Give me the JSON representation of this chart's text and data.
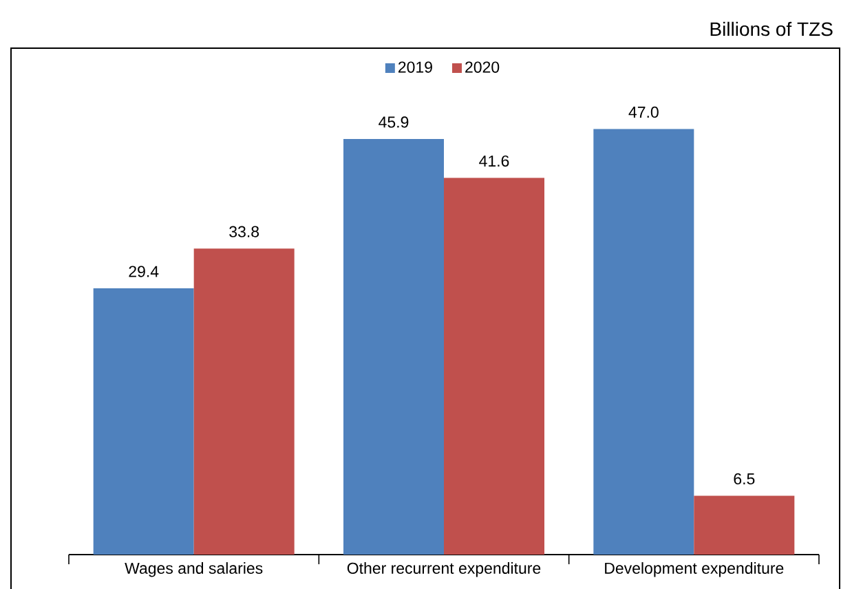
{
  "chart_data": {
    "type": "bar",
    "subtitle": "Billions of TZS",
    "categories": [
      "Wages and salaries",
      "Other recurrent expenditure",
      "Development expenditure"
    ],
    "series": [
      {
        "name": "2019",
        "color": "#4f81bd",
        "values": [
          29.4,
          45.9,
          47.0
        ],
        "value_labels": [
          "29.4",
          "45.9",
          "47.0"
        ]
      },
      {
        "name": "2020",
        "color": "#c0504d",
        "values": [
          33.8,
          41.6,
          6.5
        ],
        "value_labels": [
          "33.8",
          "41.6",
          "6.5"
        ]
      }
    ],
    "legend": "top"
  }
}
